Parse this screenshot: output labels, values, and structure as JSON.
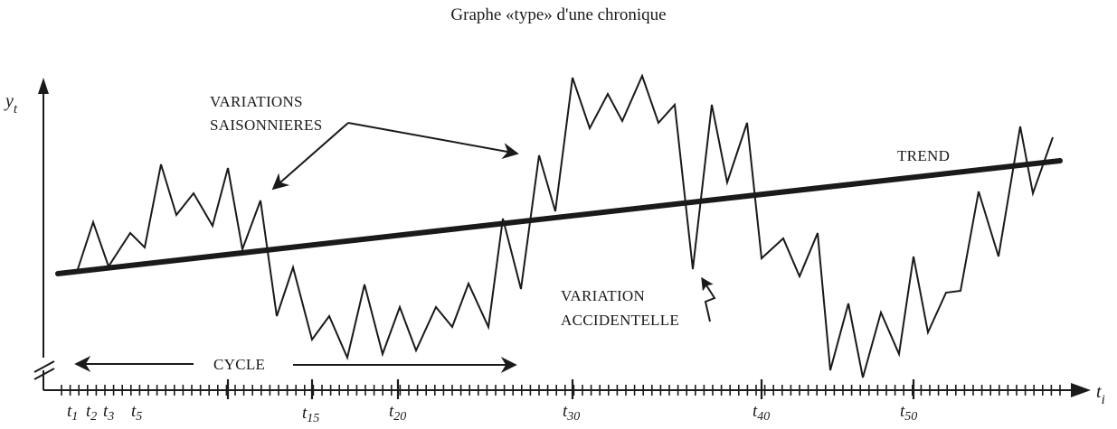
{
  "title": "Graphe «type» d'une chronique",
  "y_axis_label": {
    "base": "y",
    "sub": "t"
  },
  "x_axis_label": {
    "base": "t",
    "sub": "i"
  },
  "annotations": {
    "saisonnieres_line1": "VARIATIONS",
    "saisonnieres_line2": "SAISONNIERES",
    "trend": "TREND",
    "accidentelle_line1": "VARIATION",
    "accidentelle_line2": "ACCIDENTELLE",
    "cycle": "CYCLE"
  },
  "tick_labels": [
    {
      "base": "t",
      "sub": "1"
    },
    {
      "base": "t",
      "sub": "2"
    },
    {
      "base": "t",
      "sub": "3"
    },
    {
      "base": "t",
      "sub": "5"
    },
    {
      "base": "t",
      "sub": "15"
    },
    {
      "base": "t",
      "sub": "20"
    },
    {
      "base": "t",
      "sub": "30"
    },
    {
      "base": "t",
      "sub": "40"
    },
    {
      "base": "t",
      "sub": "50"
    }
  ],
  "colors": {
    "ink": "#1a1a1a",
    "paper": "#ffffff"
  }
}
